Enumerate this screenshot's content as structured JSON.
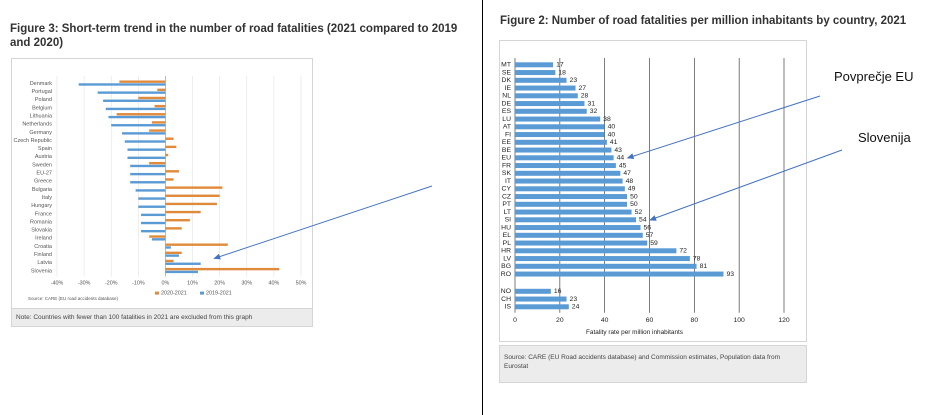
{
  "left_figure": {
    "title": "Figure 3: Short-term trend in the number of road fatalities (2021 compared to 2019 and 2020)",
    "source": "Source: CARE (EU road accidents database)",
    "note": "Note: Countries with fewer than 100 fatalities in 2021 are excluded from this graph"
  },
  "right_figure": {
    "title": "Figure 2: Number of road fatalities per million inhabitants by country, 2021",
    "source": "Source: CARE (EU Road accidents database) and Commission estimates, Population data from Eurostat"
  },
  "annotations": {
    "eu_label": "Povprečje EU",
    "slovenia_label": "Slovenija"
  },
  "colors": {
    "series_2020_2021": "#e08a3c",
    "series_2019_2021": "#5b9bd5",
    "bar_blue": "#5b9bd5",
    "arrow": "#4472c4"
  },
  "chart_data": [
    {
      "type": "bar",
      "orientation": "horizontal",
      "title": "Figure 3: Short-term trend in the number of road fatalities (2021 compared to 2019 and 2020)",
      "categories": [
        "Denmark",
        "Portugal",
        "Poland",
        "Belgium",
        "Lithuania",
        "Netherlands",
        "Germany",
        "Czech Republic",
        "Spain",
        "Austria",
        "Sweden",
        "EU-27",
        "Greece",
        "Bulgaria",
        "Italy",
        "Hungary",
        "France",
        "Romania",
        "Slovakia",
        "Ireland",
        "Croatia",
        "Finland",
        "Latvia",
        "Slovenia"
      ],
      "series": [
        {
          "name": "2020-2021",
          "values": [
            -17,
            -3,
            -10,
            -4,
            -18,
            -5,
            -6,
            3,
            4,
            1,
            -6,
            5,
            3,
            21,
            20,
            19,
            13,
            9,
            6,
            -6,
            23,
            6,
            3,
            42
          ]
        },
        {
          "name": "2019-2021",
          "values": [
            -32,
            -25,
            -23,
            -22,
            -21,
            -20,
            -16,
            -15,
            -14,
            -14,
            -13,
            -13,
            -13,
            -11,
            -10,
            -10,
            -9,
            -9,
            -9,
            -5,
            2,
            5,
            13,
            12
          ]
        }
      ],
      "xlim": [
        -40,
        50
      ],
      "xticks": [
        "-40%",
        "-30%",
        "-20%",
        "-10%",
        "0%",
        "10%",
        "20%",
        "30%",
        "40%",
        "50%"
      ],
      "legend_position": "bottom",
      "grid": true
    },
    {
      "type": "bar",
      "orientation": "horizontal",
      "title": "Figure 2: Number of road fatalities per million inhabitants by country, 2021",
      "categories": [
        "MT",
        "SE",
        "DK",
        "IE",
        "NL",
        "DE",
        "ES",
        "LU",
        "AT",
        "FI",
        "EE",
        "BE",
        "EU",
        "FR",
        "SK",
        "IT",
        "CY",
        "CZ",
        "PT",
        "LT",
        "SI",
        "HU",
        "EL",
        "PL",
        "HR",
        "LV",
        "BG",
        "RO",
        "NO",
        "CH",
        "IS"
      ],
      "values": [
        17,
        18,
        23,
        27,
        28,
        31,
        32,
        38,
        40,
        40,
        41,
        43,
        44,
        45,
        47,
        48,
        49,
        50,
        50,
        52,
        54,
        56,
        57,
        59,
        72,
        78,
        81,
        93,
        16,
        23,
        24
      ],
      "xlabel": "Fatality rate per million inhabitants",
      "xlim": [
        0,
        120
      ],
      "xticks": [
        "0",
        "20",
        "40",
        "60",
        "80",
        "100",
        "120"
      ],
      "grid": true
    }
  ]
}
